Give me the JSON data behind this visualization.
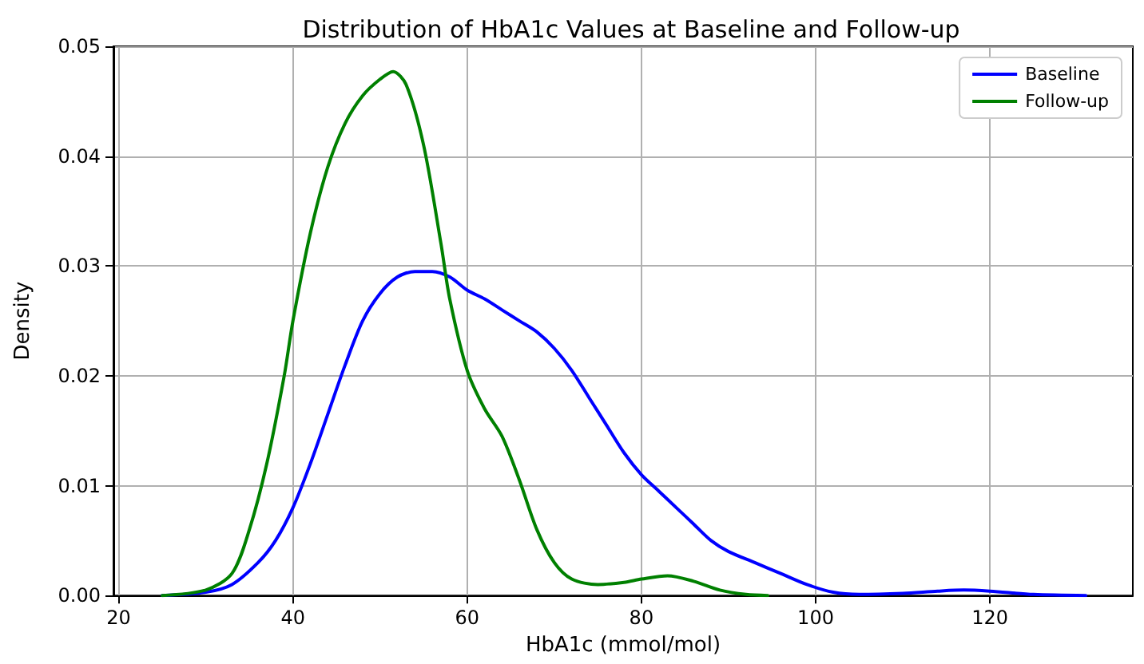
{
  "chart_data": {
    "type": "line",
    "title": "Distribution of HbA1c Values at Baseline and Follow-up",
    "xlabel": "HbA1c (mmol/mol)",
    "ylabel": "Density",
    "xlim": [
      19.4,
      136.4
    ],
    "xticks": [
      20,
      40,
      60,
      80,
      100,
      120
    ],
    "ylim": [
      0,
      0.05
    ],
    "yticks": [
      {
        "value": 0,
        "label": "0.00"
      },
      {
        "value": 0.01,
        "label": "0.01"
      },
      {
        "value": 0.02,
        "label": "0.02"
      },
      {
        "value": 0.03,
        "label": "0.03"
      },
      {
        "value": 0.04,
        "label": "0.04"
      },
      {
        "value": 0.05,
        "label": "0.05"
      }
    ],
    "grid": true,
    "legend": "top right",
    "marker": "none",
    "line_style": "solid",
    "series": [
      {
        "name": "Baseline",
        "color": "#0000ff",
        "x": [
          25,
          30,
          33,
          36,
          38,
          40,
          42,
          44,
          46,
          48,
          50,
          52,
          54,
          56,
          58,
          60,
          62,
          64,
          66,
          68,
          70,
          72,
          74,
          76,
          78,
          80,
          82,
          84,
          86,
          88,
          90,
          93,
          96,
          99,
          102,
          105,
          110,
          114,
          117,
          120,
          125,
          131
        ],
        "values": [
          0,
          0.0003,
          0.001,
          0.003,
          0.005,
          0.008,
          0.012,
          0.0165,
          0.021,
          0.025,
          0.0275,
          0.029,
          0.0295,
          0.0295,
          0.029,
          0.0278,
          0.027,
          0.026,
          0.025,
          0.024,
          0.0225,
          0.0205,
          0.018,
          0.0155,
          0.013,
          0.011,
          0.0095,
          0.008,
          0.0065,
          0.005,
          0.004,
          0.003,
          0.002,
          0.001,
          0.0003,
          0.0001,
          0.0002,
          0.0004,
          0.0005,
          0.0004,
          0.0001,
          0
        ]
      },
      {
        "name": "Follow-up",
        "color": "#008000",
        "x": [
          25,
          30,
          33,
          35,
          37,
          39,
          40,
          42,
          44,
          46,
          48,
          50,
          51.5,
          53,
          55,
          57,
          58,
          60,
          62,
          64,
          66,
          68,
          70,
          72,
          75,
          78,
          80,
          83,
          86,
          89,
          92,
          94.5
        ],
        "values": [
          0,
          0.0005,
          0.002,
          0.006,
          0.012,
          0.02,
          0.025,
          0.033,
          0.039,
          0.043,
          0.0455,
          0.047,
          0.0477,
          0.0465,
          0.041,
          0.032,
          0.027,
          0.0205,
          0.017,
          0.0145,
          0.0105,
          0.006,
          0.003,
          0.0015,
          0.001,
          0.0012,
          0.0015,
          0.0018,
          0.0013,
          0.0005,
          0.0001,
          0
        ]
      }
    ]
  }
}
